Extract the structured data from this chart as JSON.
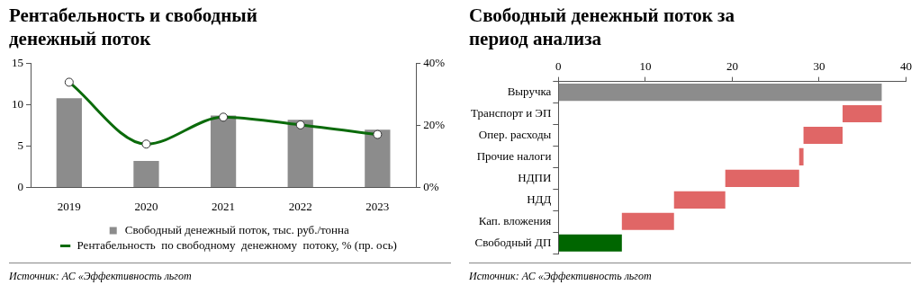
{
  "chart_data": [
    {
      "type": "bar",
      "title": "Рентабельность и свободный денежный поток",
      "categories": [
        "2019",
        "2020",
        "2021",
        "2022",
        "2023"
      ],
      "series": [
        {
          "name": "Свободный денежный поток, тыс. руб./тонна",
          "type": "bar",
          "color": "#8c8c8c",
          "values": [
            10.8,
            3.2,
            8.7,
            8.2,
            7.0
          ]
        },
        {
          "name": "Рентабельность  по свободному  денежному  потоку, % (пр. ось)",
          "type": "line",
          "axis": "y2",
          "color": "#0b6b0b",
          "values": [
            34,
            14,
            22.7,
            20.2,
            17.1
          ]
        }
      ],
      "ylim": [
        0,
        15
      ],
      "yticks": [
        0,
        5,
        10,
        15
      ],
      "y2lim": [
        0,
        40
      ],
      "y2ticks": [
        {
          "value": 0,
          "label": "0%"
        },
        {
          "value": 20,
          "label": "20%"
        },
        {
          "value": 40,
          "label": "40%"
        }
      ],
      "marker": "circle",
      "legend": "bottom",
      "grid": false,
      "annotations": [
        "Источник: АС «Эффективность льгот"
      ]
    },
    {
      "type": "bar",
      "orientation": "horizontal",
      "title": "Свободный денежный поток за период анализа",
      "categories": [
        "Выручка",
        "Транспорт и ЭП",
        "Опер. расходы",
        "Прочие налоги",
        "НДПИ",
        "НДД",
        "Кап. вложения",
        "Свободный ДП"
      ],
      "values": [
        37.2,
        4.5,
        4.5,
        0.5,
        8.5,
        5.9,
        6.0,
        7.3
      ],
      "base": [
        0,
        32.7,
        28.2,
        27.7,
        19.2,
        13.3,
        7.3,
        0
      ],
      "colors": [
        "#8c8c8c",
        "#e06666",
        "#e06666",
        "#e06666",
        "#e06666",
        "#e06666",
        "#e06666",
        "#006600"
      ],
      "xlim": [
        0,
        40
      ],
      "xticks": [
        0,
        10,
        20,
        30,
        40
      ],
      "grid": false,
      "legend": false,
      "annotations": [
        "Источник: АС «Эффективность льгот"
      ]
    }
  ]
}
